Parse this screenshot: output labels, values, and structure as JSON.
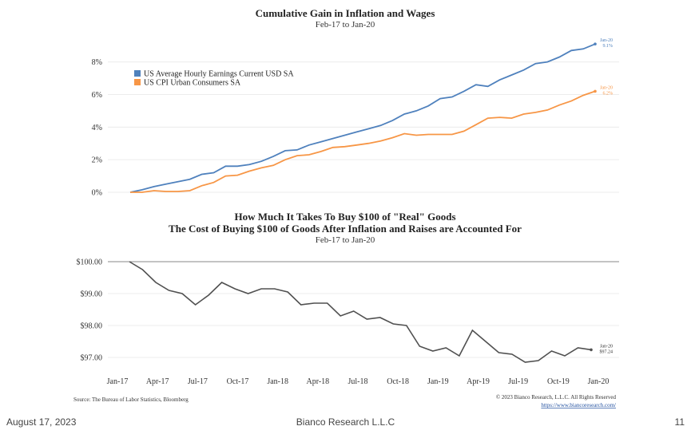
{
  "footer": {
    "date": "August 17, 2023",
    "company": "Bianco Research L.L.C",
    "page": "11"
  },
  "credits": {
    "source": "Source: The Bureau of Labor Statistics, Bloomberg",
    "copyright": "© 2023 Bianco Research, L.L.C. All Rights Reserved",
    "website": "https://www.biancoresearch.com/"
  },
  "chart_data": [
    {
      "type": "line",
      "title": "Cumulative Gain in Inflation and Wages",
      "subtitle": "Feb-17 to Jan-20",
      "ylim": [
        0,
        9.5
      ],
      "yticks": [
        0,
        2,
        4,
        6,
        8
      ],
      "ytick_labels": [
        "0%",
        "2%",
        "4%",
        "6%",
        "8%"
      ],
      "legend_position": "top-left",
      "series": [
        {
          "name": "US Average Hourly Earnings Current USD SA",
          "color": "#4f81bd",
          "end_label": [
            "Jan-20",
            "9.1%"
          ],
          "values": [
            0,
            0.15,
            0.35,
            0.5,
            0.65,
            0.8,
            1.1,
            1.2,
            1.6,
            1.6,
            1.7,
            1.9,
            2.2,
            2.55,
            2.6,
            2.9,
            3.1,
            3.3,
            3.5,
            3.7,
            3.9,
            4.1,
            4.4,
            4.8,
            5.0,
            5.3,
            5.75,
            5.85,
            6.2,
            6.6,
            6.5,
            6.9,
            7.2,
            7.5,
            7.9,
            8.0,
            8.3,
            8.7,
            8.8,
            9.1
          ]
        },
        {
          "name": "US CPI Urban Consumers SA",
          "color": "#f79646",
          "end_label": [
            "Jan-20",
            "6.2%"
          ],
          "values": [
            0,
            0.0,
            0.1,
            0.05,
            0.05,
            0.1,
            0.4,
            0.6,
            1.0,
            1.05,
            1.3,
            1.5,
            1.65,
            2.0,
            2.25,
            2.3,
            2.5,
            2.75,
            2.8,
            2.9,
            3.0,
            3.15,
            3.35,
            3.6,
            3.5,
            3.55,
            3.55,
            3.55,
            3.75,
            4.15,
            4.55,
            4.6,
            4.55,
            4.8,
            4.9,
            5.05,
            5.35,
            5.6,
            5.95,
            6.2
          ]
        }
      ]
    },
    {
      "type": "line",
      "title": "How Much It Takes To Buy $100 of \"Real\" Goods",
      "subtitle": "The Cost of Buying $100 of Goods After Inflation and Raises are Accounted For",
      "subtitle2": "Feb-17 to Jan-20",
      "ylim": [
        96.8,
        100.1
      ],
      "yticks": [
        97,
        98,
        99,
        100
      ],
      "ytick_labels": [
        "$97.00",
        "$98.00",
        "$99.00",
        "$100.00"
      ],
      "x_tick_labels": [
        "Jan-17",
        "Apr-17",
        "Jul-17",
        "Oct-17",
        "Jan-18",
        "Apr-18",
        "Jul-18",
        "Oct-18",
        "Jan-19",
        "Apr-19",
        "Jul-19",
        "Oct-19",
        "Jan-20"
      ],
      "series": [
        {
          "name": "",
          "color": "#505050",
          "end_label": [
            "Jan-20",
            "$97.24"
          ],
          "values": [
            100.0,
            99.75,
            99.35,
            99.1,
            99.0,
            98.65,
            98.95,
            99.35,
            99.15,
            99.0,
            99.15,
            99.15,
            99.05,
            98.65,
            98.7,
            98.7,
            98.3,
            98.45,
            98.2,
            98.25,
            98.05,
            98.0,
            97.35,
            97.2,
            97.3,
            97.05,
            97.85,
            97.5,
            97.15,
            97.1,
            96.85,
            96.9,
            97.2,
            97.05,
            97.3,
            97.24
          ]
        }
      ]
    }
  ]
}
